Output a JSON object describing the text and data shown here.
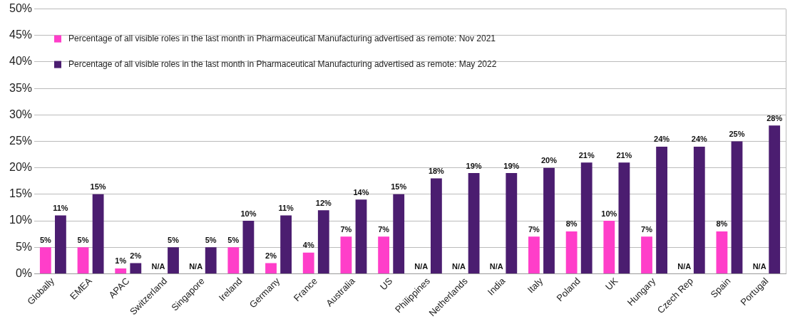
{
  "chart_data": {
    "type": "bar",
    "categories": [
      "Globally",
      "EMEA",
      "APAC",
      "Switzerland",
      "Singapore",
      "Ireland",
      "Germany",
      "France",
      "Australia",
      "US",
      "Philippines",
      "Netherlands",
      "India",
      "Italy",
      "Poland",
      "UK",
      "Hungary",
      "Czech Rep",
      "Spain",
      "Portugal"
    ],
    "series": [
      {
        "name": "Percentage of all visible roles in the last month in Pharmaceutical Manufacturing advertised as remote: Nov 2021",
        "color": "#ff3ec9",
        "values": [
          5,
          5,
          1,
          null,
          null,
          5,
          2,
          4,
          7,
          7,
          null,
          null,
          null,
          7,
          8,
          10,
          7,
          null,
          8,
          null
        ],
        "value_labels": [
          "5%",
          "5%",
          "1%",
          "N/A",
          "N/A",
          "5%",
          "2%",
          "4%",
          "7%",
          "7%",
          "N/A",
          "N/A",
          "N/A",
          "7%",
          "8%",
          "10%",
          "7%",
          "N/A",
          "8%",
          "N/A"
        ]
      },
      {
        "name": "Percentage of all visible roles in the last month in Pharmaceutical Manufacturing advertised as remote: May 2022",
        "color": "#4b1d70",
        "values": [
          11,
          15,
          2,
          5,
          5,
          10,
          11,
          12,
          14,
          15,
          18,
          19,
          19,
          20,
          21,
          21,
          24,
          24,
          25,
          28
        ],
        "value_labels": [
          "11%",
          "15%",
          "2%",
          "5%",
          "5%",
          "10%",
          "11%",
          "12%",
          "14%",
          "15%",
          "18%",
          "19%",
          "19%",
          "20%",
          "21%",
          "21%",
          "24%",
          "24%",
          "25%",
          "28%"
        ]
      }
    ],
    "ylim": [
      0,
      50
    ],
    "yticks": [
      {
        "value": 0,
        "label": "0%"
      },
      {
        "value": 5,
        "label": "5%"
      },
      {
        "value": 10,
        "label": "10%"
      },
      {
        "value": 15,
        "label": "15%"
      },
      {
        "value": 20,
        "label": "20%"
      },
      {
        "value": 25,
        "label": "25%"
      },
      {
        "value": 30,
        "label": "30%"
      },
      {
        "value": 35,
        "label": "35%"
      },
      {
        "value": 40,
        "label": "40%"
      },
      {
        "value": 45,
        "label": "45%"
      },
      {
        "value": 50,
        "label": "50%"
      }
    ],
    "grid": "y",
    "legend": "top left"
  }
}
